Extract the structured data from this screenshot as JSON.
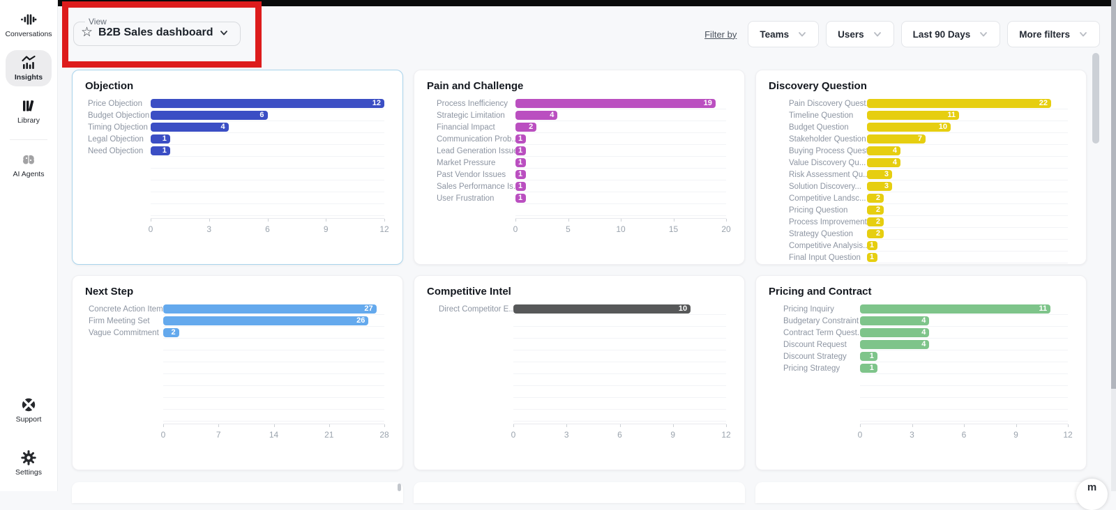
{
  "sidebar": {
    "items": [
      {
        "id": "conversations",
        "label": "Conversations",
        "icon": "waveform-icon",
        "active": false
      },
      {
        "id": "insights",
        "label": "Insights",
        "icon": "trend-chart-icon",
        "active": true
      },
      {
        "id": "library",
        "label": "Library",
        "icon": "books-icon",
        "active": false
      },
      {
        "id": "ai-agents",
        "label": "AI Agents",
        "icon": "ai-brain-icon",
        "active": false
      },
      {
        "id": "support",
        "label": "Support",
        "icon": "support-icon",
        "active": false
      },
      {
        "id": "settings",
        "label": "Settings",
        "icon": "gear-icon",
        "active": false
      }
    ]
  },
  "header": {
    "view": {
      "label": "View",
      "value": "B2B Sales dashboard",
      "star_icon": "star-icon",
      "chevron_icon": "chevron-down-icon"
    },
    "filter_by_label": "Filter by",
    "filters": [
      {
        "id": "teams",
        "label": "Teams"
      },
      {
        "id": "users",
        "label": "Users"
      },
      {
        "id": "date-range",
        "label": "Last 90 Days"
      },
      {
        "id": "more-filters",
        "label": "More filters"
      }
    ]
  },
  "chart_data": [
    {
      "type": "bar",
      "orientation": "horizontal",
      "title": "Objection",
      "color": "#3b4ec4",
      "categories": [
        "Price Objection",
        "Budget Objection",
        "Timing Objection",
        "Legal Objection",
        "Need Objection"
      ],
      "values": [
        12,
        6,
        4,
        1,
        1
      ],
      "xlim": [
        0,
        12
      ],
      "xticks": [
        0,
        3,
        6,
        9,
        12
      ],
      "grid": "row-baselines",
      "total_rows": 10,
      "axis_visible": true,
      "highlighted": true
    },
    {
      "type": "bar",
      "orientation": "horizontal",
      "title": "Pain and Challenge",
      "color": "#ba4fc0",
      "categories": [
        "Process Inefficiency",
        "Strategic Limitation",
        "Financial Impact",
        "Communication Prob...",
        "Lead Generation Issue",
        "Market Pressure",
        "Past Vendor Issues",
        "Sales Performance Is...",
        "User Frustration"
      ],
      "values": [
        19,
        4,
        2,
        1,
        1,
        1,
        1,
        1,
        1
      ],
      "xlim": [
        0,
        20
      ],
      "xticks": [
        0,
        5,
        10,
        15,
        20
      ],
      "grid": "row-baselines",
      "total_rows": 10,
      "axis_visible": true,
      "highlighted": false
    },
    {
      "type": "bar",
      "orientation": "horizontal",
      "title": "Discovery Question",
      "color": "#e6ce10",
      "categories": [
        "Pain Discovery Quest...",
        "Timeline Question",
        "Budget Question",
        "Stakeholder Question",
        "Buying Process Quest...",
        "Value Discovery Qu...",
        "Risk Assessment Qu...",
        "Solution Discovery...",
        "Competitive Landsc...",
        "Pricing Question",
        "Process Improvement...",
        "Strategy Question",
        "Competitive Analysis...",
        "Final Input Question"
      ],
      "values": [
        22,
        11,
        10,
        7,
        4,
        4,
        3,
        3,
        2,
        2,
        2,
        2,
        1,
        1
      ],
      "xlim": [
        0,
        24
      ],
      "xticks": [],
      "grid": "row-baselines",
      "total_rows": 14,
      "axis_visible": false,
      "highlighted": false
    },
    {
      "type": "bar",
      "orientation": "horizontal",
      "title": "Next Step",
      "color": "#64a9ed",
      "categories": [
        "Concrete Action Item",
        "Firm Meeting Set",
        "Vague Commitment"
      ],
      "values": [
        27,
        26,
        2
      ],
      "xlim": [
        0,
        28
      ],
      "xticks": [
        0,
        7,
        14,
        21,
        28
      ],
      "grid": "row-baselines",
      "total_rows": 10,
      "axis_visible": true,
      "highlighted": false
    },
    {
      "type": "bar",
      "orientation": "horizontal",
      "title": "Competitive Intel",
      "color": "#575859",
      "categories": [
        "Direct Competitor E..."
      ],
      "values": [
        10
      ],
      "xlim": [
        0,
        12
      ],
      "xticks": [
        0,
        3,
        6,
        9,
        12
      ],
      "grid": "row-baselines",
      "total_rows": 10,
      "axis_visible": true,
      "highlighted": false
    },
    {
      "type": "bar",
      "orientation": "horizontal",
      "title": "Pricing and Contract",
      "color": "#7ec48a",
      "categories": [
        "Pricing Inquiry",
        "Budgetary Constraint",
        "Contract Term Quest...",
        "Discount Request",
        "Discount Strategy",
        "Pricing Strategy"
      ],
      "values": [
        11,
        4,
        4,
        4,
        1,
        1
      ],
      "xlim": [
        0,
        12
      ],
      "xticks": [
        0,
        3,
        6,
        9,
        12
      ],
      "grid": "row-baselines",
      "total_rows": 10,
      "axis_visible": true,
      "highlighted": false
    }
  ],
  "annotation": {
    "box_color": "#dd1c1c",
    "top_bar_color": "#0b0b0b"
  },
  "chat_widget": {
    "glyph": "m"
  }
}
